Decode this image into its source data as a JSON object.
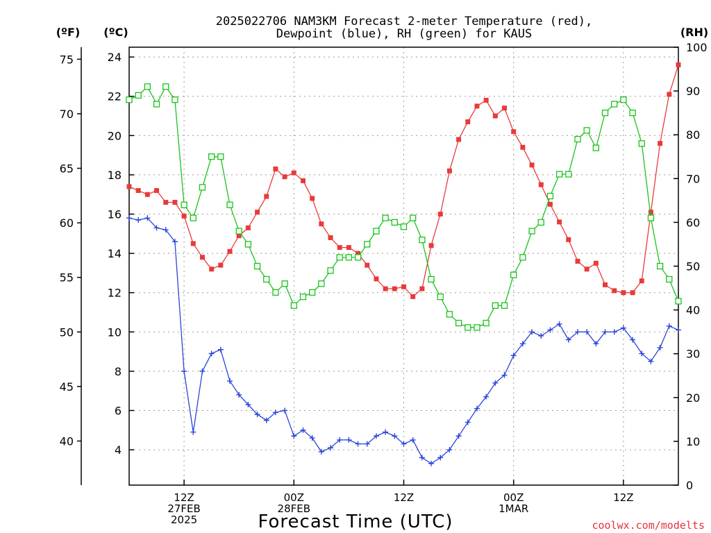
{
  "chart_data": {
    "type": "line",
    "title_line1": "2025022706 NAM3KM Forecast 2-meter Temperature (red),",
    "title_line2": "Dewpoint (blue), RH (green) for KAUS",
    "xlabel": "Forecast Time (UTC)",
    "credit": "coolwx.com/modelts",
    "units": {
      "fahrenheit": "(ºF)",
      "celsius": "(ºC)",
      "rh": "(RH)"
    },
    "x_hours_from_06z_27feb": {
      "min": 0,
      "max": 60
    },
    "xticks": [
      {
        "hour": 6,
        "lines": [
          "12Z",
          "27FEB",
          "2025"
        ]
      },
      {
        "hour": 18,
        "lines": [
          "00Z",
          "28FEB"
        ]
      },
      {
        "hour": 30,
        "lines": [
          "12Z"
        ]
      },
      {
        "hour": 42,
        "lines": [
          "00Z",
          "1MAR"
        ]
      },
      {
        "hour": 54,
        "lines": [
          "12Z"
        ]
      }
    ],
    "y_celsius": {
      "min": 2.2,
      "max": 24.5,
      "ticks": [
        4,
        6,
        8,
        10,
        12,
        14,
        16,
        18,
        20,
        22,
        24
      ]
    },
    "y_fahrenheit": {
      "ticks": [
        40,
        45,
        50,
        55,
        60,
        65,
        70,
        75
      ]
    },
    "y_rh": {
      "min": 0,
      "max": 100,
      "ticks": [
        0,
        10,
        20,
        30,
        40,
        50,
        60,
        70,
        80,
        90,
        100
      ]
    },
    "colors": {
      "temperature": "#e83a3a",
      "dewpoint": "#2a44d8",
      "rh": "#19c319"
    },
    "series": [
      {
        "key": "temperature",
        "axis": "celsius",
        "marker": "filled-square",
        "values": [
          17.4,
          17.2,
          17.0,
          17.2,
          16.6,
          16.6,
          15.9,
          14.5,
          13.8,
          13.2,
          13.4,
          14.1,
          14.9,
          15.3,
          16.1,
          16.9,
          18.3,
          17.9,
          18.1,
          17.7,
          16.8,
          15.5,
          14.8,
          14.3,
          14.3,
          14.0,
          13.4,
          12.7,
          12.2,
          12.2,
          12.3,
          11.8,
          12.2,
          14.4,
          16.0,
          18.2,
          19.8,
          20.7,
          21.5,
          21.8,
          21.0,
          21.4,
          20.2,
          19.4,
          18.5,
          17.5,
          16.5,
          15.6,
          14.7,
          13.6,
          13.2,
          13.5,
          12.4,
          12.1,
          12.0,
          12.0,
          12.6,
          16.1,
          19.6,
          22.1,
          23.6
        ]
      },
      {
        "key": "dewpoint",
        "axis": "celsius",
        "marker": "plus",
        "values": [
          15.8,
          15.7,
          15.8,
          15.3,
          15.2,
          14.6,
          8.0,
          4.9,
          8.0,
          8.9,
          9.1,
          7.5,
          6.8,
          6.3,
          5.8,
          5.5,
          5.9,
          6.0,
          4.7,
          5.0,
          4.6,
          3.9,
          4.1,
          4.5,
          4.5,
          4.3,
          4.3,
          4.7,
          4.9,
          4.7,
          4.3,
          4.5,
          3.6,
          3.3,
          3.6,
          4.0,
          4.7,
          5.4,
          6.1,
          6.7,
          7.4,
          7.8,
          8.8,
          9.4,
          10.0,
          9.8,
          10.1,
          10.4,
          9.6,
          10.0,
          10.0,
          9.4,
          10.0,
          10.0,
          10.2,
          9.6,
          8.9,
          8.5,
          9.2,
          10.3,
          10.1
        ]
      },
      {
        "key": "rh",
        "axis": "rh",
        "marker": "open-square",
        "values": [
          88,
          89,
          91,
          87,
          91,
          88,
          64,
          61,
          68,
          75,
          75,
          64,
          58,
          55,
          50,
          47,
          44,
          46,
          41,
          43,
          44,
          46,
          49,
          52,
          52,
          52,
          55,
          58,
          61,
          60,
          59,
          61,
          56,
          47,
          43,
          39,
          37,
          36,
          36,
          37,
          41,
          41,
          48,
          52,
          58,
          60,
          66,
          71,
          71,
          79,
          81,
          77,
          85,
          87,
          88,
          85,
          78,
          61,
          50,
          47,
          42
        ]
      }
    ]
  }
}
